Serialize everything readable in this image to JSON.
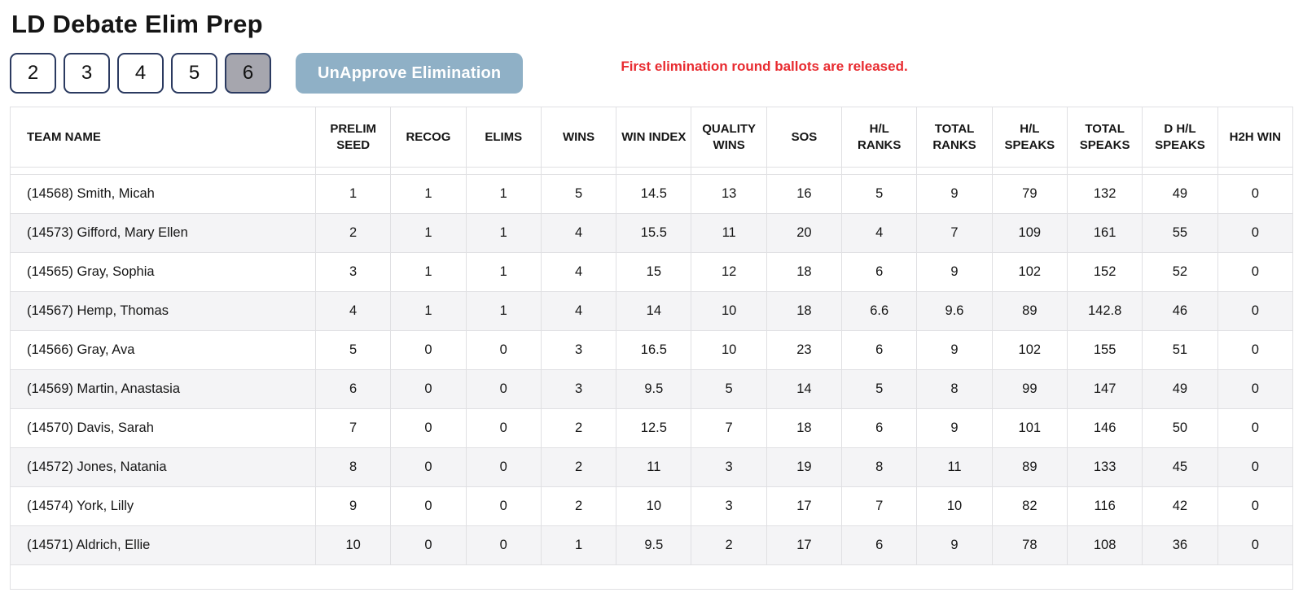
{
  "page": {
    "title": "LD Debate Elim Prep"
  },
  "controls": {
    "round_buttons": [
      "2",
      "3",
      "4",
      "5",
      "6"
    ],
    "active_round": "6",
    "unapprove_label": "UnApprove Elimination",
    "notice": "First elimination round ballots are released."
  },
  "colors": {
    "round_button_border": "#2b3a60",
    "active_round_bg": "#a6a6ae",
    "unapprove_button_bg": "#8fb0c6",
    "notice_red": "#e82b30",
    "table_border": "#e0e0e3",
    "alt_row_bg": "#f4f4f6"
  },
  "table": {
    "columns": [
      "TEAM NAME",
      "PRELIM SEED",
      "RECOG",
      "ELIMS",
      "WINS",
      "WIN INDEX",
      "QUALITY WINS",
      "SOS",
      "H/L RANKS",
      "TOTAL RANKS",
      "H/L SPEAKS",
      "TOTAL SPEAKS",
      "D H/L SPEAKS",
      "H2H WIN"
    ],
    "rows": [
      {
        "team": "(14568) Smith, Micah",
        "values": [
          "1",
          "1",
          "1",
          "5",
          "14.5",
          "13",
          "16",
          "5",
          "9",
          "79",
          "132",
          "49",
          "0"
        ]
      },
      {
        "team": "(14573) Gifford, Mary Ellen",
        "values": [
          "2",
          "1",
          "1",
          "4",
          "15.5",
          "11",
          "20",
          "4",
          "7",
          "109",
          "161",
          "55",
          "0"
        ]
      },
      {
        "team": "(14565) Gray, Sophia",
        "values": [
          "3",
          "1",
          "1",
          "4",
          "15",
          "12",
          "18",
          "6",
          "9",
          "102",
          "152",
          "52",
          "0"
        ]
      },
      {
        "team": "(14567) Hemp, Thomas",
        "values": [
          "4",
          "1",
          "1",
          "4",
          "14",
          "10",
          "18",
          "6.6",
          "9.6",
          "89",
          "142.8",
          "46",
          "0"
        ]
      },
      {
        "team": "(14566) Gray, Ava",
        "values": [
          "5",
          "0",
          "0",
          "3",
          "16.5",
          "10",
          "23",
          "6",
          "9",
          "102",
          "155",
          "51",
          "0"
        ]
      },
      {
        "team": "(14569) Martin, Anastasia",
        "values": [
          "6",
          "0",
          "0",
          "3",
          "9.5",
          "5",
          "14",
          "5",
          "8",
          "99",
          "147",
          "49",
          "0"
        ]
      },
      {
        "team": "(14570) Davis, Sarah",
        "values": [
          "7",
          "0",
          "0",
          "2",
          "12.5",
          "7",
          "18",
          "6",
          "9",
          "101",
          "146",
          "50",
          "0"
        ]
      },
      {
        "team": "(14572) Jones, Natania",
        "values": [
          "8",
          "0",
          "0",
          "2",
          "11",
          "3",
          "19",
          "8",
          "11",
          "89",
          "133",
          "45",
          "0"
        ]
      },
      {
        "team": "(14574) York, Lilly",
        "values": [
          "9",
          "0",
          "0",
          "2",
          "10",
          "3",
          "17",
          "7",
          "10",
          "82",
          "116",
          "42",
          "0"
        ]
      },
      {
        "team": "(14571) Aldrich, Ellie",
        "values": [
          "10",
          "0",
          "0",
          "1",
          "9.5",
          "2",
          "17",
          "6",
          "9",
          "78",
          "108",
          "36",
          "0"
        ]
      }
    ]
  }
}
